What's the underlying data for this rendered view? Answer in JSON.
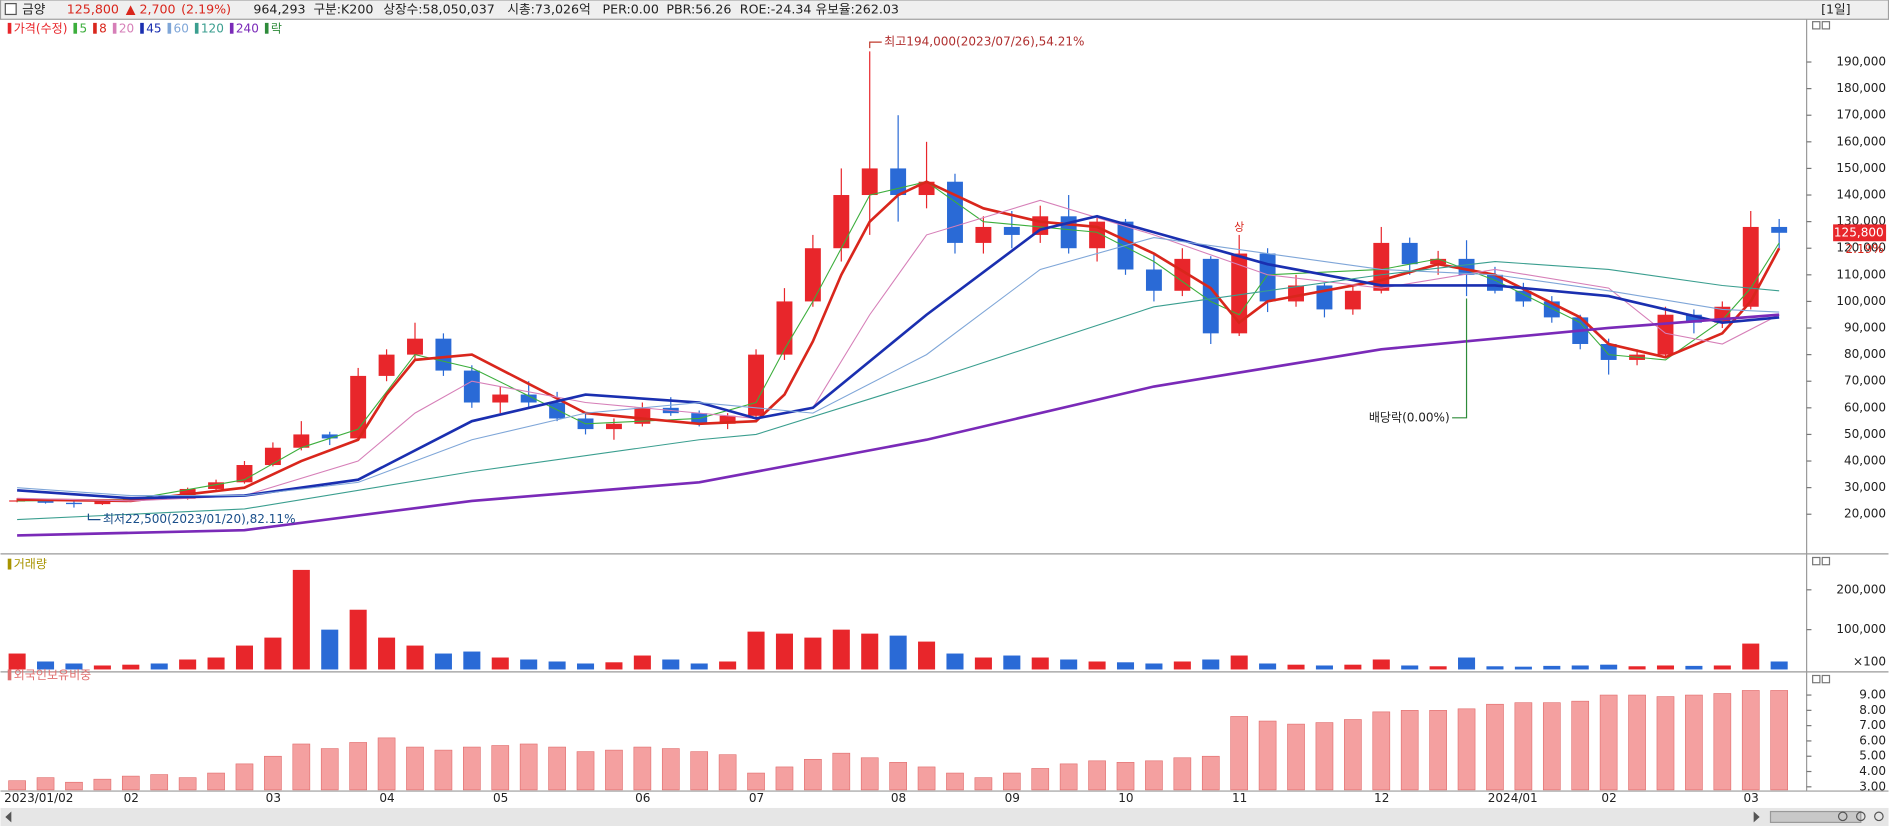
{
  "header": {
    "name": "금양",
    "price": "125,800",
    "change": "▲ 2,700",
    "change_pct": "(2.19%)",
    "volume": "964,293",
    "items": [
      "구분:K200",
      "상장수:58,050,037",
      "시총:73,026억",
      "PER:0.00",
      "PBR:56.26",
      "ROE:-24.34",
      "유보율:262.03"
    ],
    "period": "[1일]"
  },
  "chart_data": [
    {
      "type": "candlestick",
      "legend_title": "가격(수정)",
      "up_color": "#e8262b",
      "down_color": "#2a6ad6",
      "grid": false,
      "categories": [
        "2023/01/02",
        null,
        null,
        null,
        "02",
        null,
        null,
        null,
        null,
        "03",
        null,
        null,
        null,
        "04",
        null,
        null,
        null,
        "05",
        null,
        null,
        null,
        null,
        "06",
        null,
        null,
        null,
        "07",
        null,
        null,
        null,
        null,
        "08",
        null,
        null,
        null,
        "09",
        null,
        null,
        null,
        "10",
        null,
        null,
        null,
        "11",
        null,
        null,
        null,
        null,
        "12",
        null,
        null,
        null,
        "2024/01",
        null,
        null,
        null,
        "02",
        null,
        null,
        null,
        null,
        "03",
        null
      ],
      "open": [
        25000,
        25200,
        24300,
        23800,
        25000,
        26000,
        25800,
        29500,
        32000,
        38500,
        45000,
        50000,
        48500,
        72000,
        80000,
        86000,
        74000,
        62000,
        65000,
        62000,
        56000,
        52000,
        54000,
        60000,
        58000,
        54000,
        57000,
        80000,
        100000,
        120000,
        140000,
        150000,
        140000,
        145000,
        122000,
        128000,
        125000,
        132000,
        120000,
        130000,
        112000,
        104000,
        116000,
        88000,
        118000,
        100000,
        106000,
        97000,
        104000,
        122000,
        114000,
        116000,
        110000,
        104000,
        100000,
        94000,
        84000,
        78000,
        80000,
        95000,
        92000,
        98000,
        128000
      ],
      "high": [
        26000,
        25800,
        24800,
        25500,
        26500,
        27000,
        30000,
        33000,
        40000,
        47000,
        55000,
        51000,
        75000,
        82000,
        92000,
        88000,
        76000,
        68000,
        70000,
        66000,
        58000,
        56000,
        62000,
        64000,
        59000,
        58000,
        82000,
        105000,
        125000,
        150000,
        194000,
        170000,
        160000,
        148000,
        132000,
        134000,
        136000,
        140000,
        132000,
        131000,
        118000,
        120000,
        117000,
        125000,
        120000,
        110000,
        107000,
        106000,
        128000,
        124000,
        119000,
        123000,
        113000,
        107000,
        102000,
        95000,
        86000,
        82000,
        98000,
        97000,
        100000,
        134000,
        131000
      ],
      "low": [
        24500,
        24000,
        22500,
        23500,
        24800,
        25500,
        25500,
        29000,
        31500,
        38000,
        44000,
        46000,
        48000,
        70000,
        78000,
        72000,
        60000,
        58000,
        60000,
        55000,
        50000,
        48000,
        53000,
        57000,
        53000,
        52000,
        56000,
        78000,
        98000,
        115000,
        125000,
        130000,
        135000,
        118000,
        118000,
        120000,
        122000,
        118000,
        115000,
        110000,
        100000,
        102000,
        84000,
        87000,
        96000,
        98000,
        94000,
        95000,
        103000,
        110000,
        110000,
        102000,
        103000,
        98000,
        92000,
        82000,
        72500,
        76000,
        79000,
        88000,
        90000,
        97000,
        120000
      ],
      "close": [
        25200,
        24300,
        23800,
        25000,
        26000,
        25800,
        29500,
        32000,
        38500,
        45000,
        50000,
        48500,
        72000,
        80000,
        86000,
        74000,
        62000,
        65000,
        62000,
        56000,
        52000,
        54000,
        60000,
        58000,
        54000,
        57000,
        80000,
        100000,
        120000,
        140000,
        150000,
        140000,
        145000,
        122000,
        128000,
        125000,
        132000,
        120000,
        130000,
        112000,
        104000,
        116000,
        88000,
        118000,
        100000,
        106000,
        97000,
        104000,
        122000,
        114000,
        116000,
        110000,
        104000,
        100000,
        94000,
        84000,
        78000,
        80000,
        95000,
        92000,
        98000,
        128000,
        125800
      ],
      "series": [
        {
          "name": "5",
          "color": "#3cae3c",
          "x": [
            0,
            4,
            8,
            10,
            12,
            14,
            16,
            20,
            24,
            26,
            27,
            28,
            29,
            30,
            32,
            34,
            36,
            38,
            40,
            42,
            43,
            44,
            48,
            50,
            52,
            55,
            56,
            58,
            60,
            61,
            62
          ],
          "values": [
            25000,
            25500,
            33000,
            45000,
            52000,
            80000,
            75000,
            54000,
            56000,
            62000,
            82000,
            100000,
            120000,
            140000,
            145000,
            130000,
            128000,
            126000,
            115000,
            100000,
            95000,
            110000,
            112000,
            116000,
            108000,
            92000,
            80000,
            78000,
            93000,
            105000,
            122000
          ]
        },
        {
          "name": "8",
          "color": "#d9261c",
          "x": [
            0,
            4,
            8,
            10,
            12,
            13,
            14,
            16,
            20,
            24,
            26,
            27,
            28,
            29,
            30,
            31,
            32,
            34,
            36,
            38,
            40,
            42,
            43,
            44,
            48,
            50,
            52,
            55,
            56,
            58,
            60,
            61,
            62
          ],
          "values": [
            25500,
            25000,
            30000,
            40000,
            48000,
            65000,
            78000,
            80000,
            58000,
            54000,
            55000,
            65000,
            85000,
            110000,
            130000,
            140000,
            145000,
            135000,
            130000,
            128000,
            118000,
            105000,
            92000,
            100000,
            108000,
            114000,
            110000,
            94000,
            84000,
            79000,
            88000,
            100000,
            120000
          ]
        },
        {
          "name": "20",
          "color": "#d67fb8",
          "x": [
            0,
            4,
            8,
            12,
            14,
            16,
            20,
            24,
            26,
            28,
            30,
            32,
            36,
            40,
            44,
            48,
            52,
            56,
            58,
            60,
            62
          ],
          "values": [
            26000,
            25000,
            27000,
            40000,
            58000,
            70000,
            62000,
            58000,
            56000,
            60000,
            95000,
            125000,
            138000,
            125000,
            110000,
            105000,
            112000,
            105000,
            88000,
            84000,
            95000
          ]
        },
        {
          "name": "45",
          "color": "#1a2fb0",
          "x": [
            0,
            4,
            8,
            12,
            16,
            20,
            24,
            26,
            28,
            32,
            36,
            38,
            40,
            44,
            48,
            52,
            56,
            60,
            62
          ],
          "values": [
            29000,
            26000,
            27000,
            33000,
            55000,
            65000,
            62000,
            56000,
            60000,
            95000,
            127000,
            132000,
            126000,
            114000,
            106000,
            106000,
            102000,
            92000,
            94000
          ]
        },
        {
          "name": "60",
          "color": "#7fa6d8",
          "x": [
            0,
            4,
            8,
            12,
            16,
            20,
            24,
            26,
            28,
            32,
            36,
            40,
            44,
            48,
            52,
            56,
            60,
            62
          ],
          "values": [
            30000,
            27000,
            27000,
            32000,
            48000,
            58000,
            62000,
            60000,
            58000,
            80000,
            112000,
            124000,
            118000,
            112000,
            110000,
            104000,
            97000,
            96000
          ]
        },
        {
          "name": "120",
          "color": "#3a9e8f",
          "x": [
            0,
            8,
            16,
            24,
            26,
            32,
            40,
            48,
            52,
            56,
            60,
            62
          ],
          "values": [
            18000,
            22000,
            36000,
            48000,
            50000,
            70000,
            98000,
            110000,
            115000,
            112000,
            106000,
            104000
          ]
        },
        {
          "name": "240",
          "color": "#7a2ab8",
          "x": [
            0,
            8,
            16,
            24,
            32,
            40,
            48,
            56,
            62
          ],
          "values": [
            12000,
            14000,
            25000,
            32000,
            48000,
            68000,
            82000,
            90000,
            95000
          ]
        }
      ],
      "marker_legend": "락",
      "marker_color": "#2e8b3a",
      "annotations": {
        "high": "최고194,000(2023/07/26),54.21%",
        "low": "최저22,500(2023/01/20),82.11%",
        "dividend": "배당락(0.00%)",
        "limit_up": "상"
      },
      "last_price_label": "125,800",
      "last_change_label": "2.19%",
      "ylim": [
        6000,
        202000
      ],
      "yticks": [
        {
          "value": 20000,
          "label": "20,000"
        },
        {
          "value": 30000,
          "label": "30,000"
        },
        {
          "value": 40000,
          "label": "40,000"
        },
        {
          "value": 50000,
          "label": "50,000"
        },
        {
          "value": 60000,
          "label": "60,000"
        },
        {
          "value": 70000,
          "label": "70,000"
        },
        {
          "value": 80000,
          "label": "80,000"
        },
        {
          "value": 90000,
          "label": "90,000"
        },
        {
          "value": 100000,
          "label": "100,000"
        },
        {
          "value": 110000,
          "label": "110,000"
        },
        {
          "value": 120000,
          "label": "120,000"
        },
        {
          "value": 130000,
          "label": "130,000"
        },
        {
          "value": 140000,
          "label": "140,000"
        },
        {
          "value": 150000,
          "label": "150,000"
        },
        {
          "value": 160000,
          "label": "160,000"
        },
        {
          "value": 170000,
          "label": "170,000"
        },
        {
          "value": 180000,
          "label": "180,000"
        },
        {
          "value": 190000,
          "label": "190,000"
        }
      ]
    },
    {
      "type": "bar",
      "title": "거래량",
      "title_color": "#a89400",
      "unit": "×100",
      "values": [
        40000,
        20000,
        15000,
        10000,
        12000,
        15000,
        25000,
        30000,
        60000,
        80000,
        250000,
        100000,
        150000,
        80000,
        60000,
        40000,
        45000,
        30000,
        25000,
        20000,
        15000,
        18000,
        35000,
        25000,
        15000,
        20000,
        95000,
        90000,
        80000,
        100000,
        90000,
        85000,
        70000,
        40000,
        30000,
        35000,
        30000,
        25000,
        20000,
        18000,
        15000,
        20000,
        25000,
        35000,
        15000,
        12000,
        10000,
        12000,
        25000,
        10000,
        8000,
        30000,
        8000,
        7000,
        9000,
        10000,
        12000,
        8000,
        10000,
        9000,
        10000,
        65000,
        20000
      ],
      "ylim": [
        0,
        260000
      ],
      "yticks": [
        {
          "value": 100000,
          "label": "100,000"
        },
        {
          "value": 200000,
          "label": "200,000"
        }
      ]
    },
    {
      "type": "bar",
      "title": "외국인보유비중",
      "title_color": "#e07070",
      "color": "#f4a0a0",
      "values": [
        3.4,
        3.6,
        3.3,
        3.5,
        3.7,
        3.8,
        3.6,
        3.9,
        4.5,
        5.0,
        5.8,
        5.5,
        5.9,
        6.2,
        5.6,
        5.4,
        5.6,
        5.7,
        5.8,
        5.6,
        5.3,
        5.4,
        5.6,
        5.5,
        5.3,
        5.1,
        3.9,
        4.3,
        4.8,
        5.2,
        4.9,
        4.6,
        4.3,
        3.9,
        3.6,
        3.9,
        4.2,
        4.5,
        4.7,
        4.6,
        4.7,
        4.9,
        5.0,
        7.6,
        7.3,
        7.1,
        7.2,
        7.4,
        7.9,
        8.0,
        8.0,
        8.1,
        8.4,
        8.5,
        8.5,
        8.6,
        9.0,
        9.0,
        8.9,
        9.0,
        9.1,
        9.3,
        9.3
      ],
      "ylim": [
        2.8,
        10.2
      ],
      "yticks": [
        {
          "value": 3,
          "label": "3.00"
        },
        {
          "value": 4,
          "label": "4.00"
        },
        {
          "value": 5,
          "label": "5.00"
        },
        {
          "value": 6,
          "label": "6.00"
        },
        {
          "value": 7,
          "label": "7.00"
        },
        {
          "value": 8,
          "label": "8.00"
        },
        {
          "value": 9,
          "label": "9.00"
        }
      ]
    }
  ]
}
